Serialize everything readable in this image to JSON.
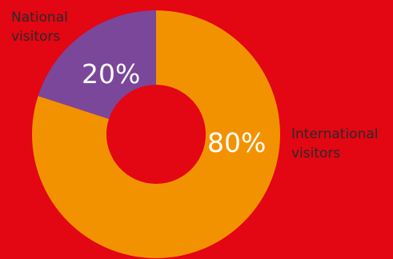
{
  "colors": {
    "background": "#e30613",
    "national": "#7b479a",
    "international": "#f39200"
  },
  "chart_data": {
    "type": "pie",
    "variant": "donut",
    "slices": [
      {
        "name": "National visitors",
        "name_lines": [
          "National",
          "visitors"
        ],
        "value": 20,
        "label": "20%",
        "color": "#7b479a"
      },
      {
        "name": "International visitors",
        "name_lines": [
          "International",
          "visitors"
        ],
        "value": 80,
        "label": "80%",
        "color": "#f39200"
      }
    ],
    "start": "12 o'clock",
    "direction": "counterclockwise"
  }
}
